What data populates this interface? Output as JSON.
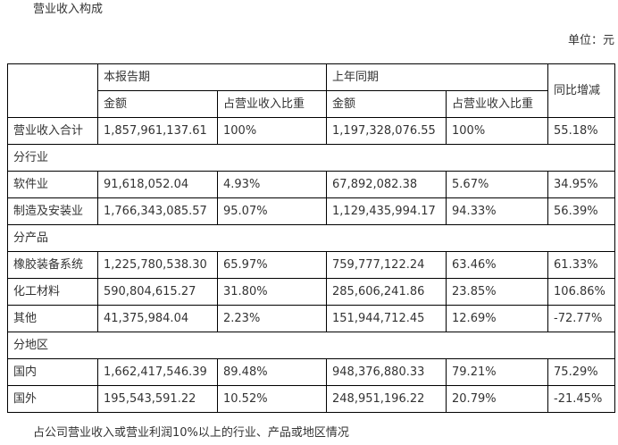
{
  "title": "营业收入构成",
  "unit": "单位：元",
  "header": {
    "current_period": "本报告期",
    "prior_period": "上年同期",
    "yoy_change": "同比增减",
    "amount": "金额",
    "share": "占营业收入比重"
  },
  "total_row": {
    "label": "营业收入合计",
    "current_amount": "1,857,961,137.61",
    "current_share": "100%",
    "prior_amount": "1,197,328,076.55",
    "prior_share": "100%",
    "yoy": "55.18%"
  },
  "sections": [
    {
      "heading": "分行业",
      "rows": [
        {
          "label": "软件业",
          "current_amount": "91,618,052.04",
          "current_share": "4.93%",
          "prior_amount": "67,892,082.38",
          "prior_share": "5.67%",
          "yoy": "34.95%"
        },
        {
          "label": "制造及安装业",
          "current_amount": "1,766,343,085.57",
          "current_share": "95.07%",
          "prior_amount": "1,129,435,994.17",
          "prior_share": "94.33%",
          "yoy": "56.39%"
        }
      ]
    },
    {
      "heading": "分产品",
      "rows": [
        {
          "label": "橡胶装备系统",
          "current_amount": "1,225,780,538.30",
          "current_share": "65.97%",
          "prior_amount": "759,777,122.24",
          "prior_share": "63.46%",
          "yoy": "61.33%"
        },
        {
          "label": "化工材料",
          "current_amount": "590,804,615.27",
          "current_share": "31.80%",
          "prior_amount": "285,606,241.86",
          "prior_share": "23.85%",
          "yoy": "106.86%"
        },
        {
          "label": "其他",
          "current_amount": "41,375,984.04",
          "current_share": "2.23%",
          "prior_amount": "151,944,712.45",
          "prior_share": "12.69%",
          "yoy": "-72.77%"
        }
      ]
    },
    {
      "heading": "分地区",
      "rows": [
        {
          "label": "国内",
          "current_amount": "1,662,417,546.39",
          "current_share": "89.48%",
          "prior_amount": "948,376,880.33",
          "prior_share": "79.21%",
          "yoy": "75.29%"
        },
        {
          "label": "国外",
          "current_amount": "195,543,591.22",
          "current_share": "10.52%",
          "prior_amount": "248,951,196.22",
          "prior_share": "20.79%",
          "yoy": "-21.45%"
        }
      ]
    }
  ],
  "footnote": "占公司营业收入或营业利润10%以上的行业、产品或地区情况"
}
